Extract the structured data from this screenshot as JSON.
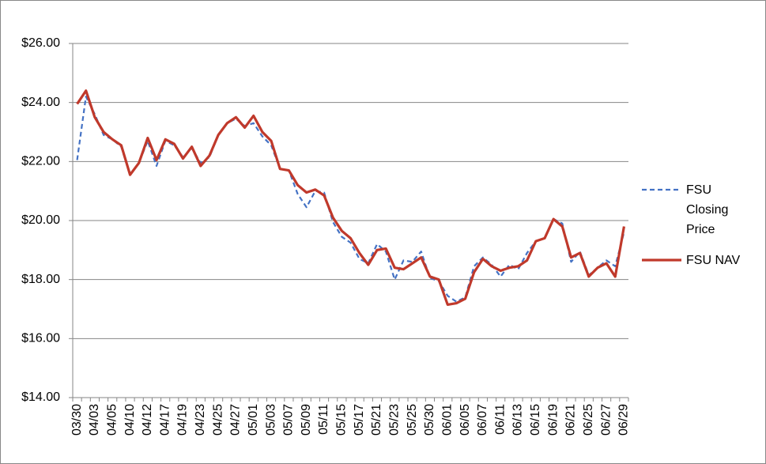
{
  "chart_data": {
    "type": "line",
    "categories": [
      "03/30",
      null,
      "04/03",
      null,
      "04/05",
      null,
      "04/10",
      null,
      "04/12",
      null,
      "04/17",
      null,
      "04/19",
      null,
      "04/23",
      null,
      "04/25",
      null,
      "04/27",
      null,
      "05/01",
      null,
      "05/03",
      null,
      "05/07",
      null,
      "05/09",
      null,
      "05/11",
      null,
      "05/15",
      null,
      "05/17",
      null,
      "05/21",
      null,
      "05/23",
      null,
      "05/25",
      null,
      "05/30",
      null,
      "06/01",
      null,
      "06/05",
      null,
      "06/07",
      null,
      "06/11",
      null,
      "06/13",
      null,
      "06/15",
      null,
      "06/19",
      null,
      "06/21",
      null,
      "06/25",
      null,
      "06/27",
      null,
      "06/29"
    ],
    "series": [
      {
        "name": "FSU Closing Price",
        "color": "#4472c4",
        "dash": true,
        "values": [
          22.05,
          24.2,
          23.6,
          22.9,
          22.75,
          22.5,
          21.55,
          21.95,
          22.7,
          21.85,
          22.7,
          22.55,
          22.15,
          22.45,
          21.95,
          22.15,
          22.9,
          23.3,
          23.45,
          23.2,
          23.3,
          22.85,
          22.55,
          21.75,
          21.7,
          20.9,
          20.45,
          21.0,
          20.95,
          19.95,
          19.45,
          19.25,
          18.7,
          18.55,
          19.2,
          18.95,
          18.0,
          18.65,
          18.6,
          18.95,
          18.05,
          17.95,
          17.45,
          17.25,
          17.4,
          18.45,
          18.75,
          18.5,
          18.1,
          18.5,
          18.35,
          18.9,
          19.3,
          19.4,
          20.05,
          19.9,
          18.6,
          18.95,
          18.15,
          18.4,
          18.65,
          18.45,
          19.6
        ]
      },
      {
        "name": "FSU NAV",
        "color": "#c0392b",
        "dash": false,
        "values": [
          23.95,
          24.4,
          23.5,
          23.0,
          22.75,
          22.55,
          21.55,
          21.95,
          22.8,
          22.05,
          22.75,
          22.6,
          22.1,
          22.5,
          21.85,
          22.2,
          22.9,
          23.3,
          23.5,
          23.15,
          23.55,
          23.0,
          22.7,
          21.75,
          21.7,
          21.2,
          20.95,
          21.05,
          20.85,
          20.1,
          19.65,
          19.4,
          18.9,
          18.5,
          19.0,
          19.05,
          18.4,
          18.35,
          18.55,
          18.75,
          18.1,
          18.0,
          17.15,
          17.2,
          17.35,
          18.25,
          18.7,
          18.45,
          18.3,
          18.4,
          18.45,
          18.65,
          19.3,
          19.4,
          20.05,
          19.8,
          18.75,
          18.9,
          18.1,
          18.4,
          18.55,
          18.1,
          19.8
        ]
      }
    ],
    "ylim": [
      14,
      26
    ],
    "yticks": [
      {
        "value": 14,
        "label": "$14.00"
      },
      {
        "value": 16,
        "label": "$16.00"
      },
      {
        "value": 18,
        "label": "$18.00"
      },
      {
        "value": 20,
        "label": "$20.00"
      },
      {
        "value": 22,
        "label": "$22.00"
      },
      {
        "value": 24,
        "label": "$24.00"
      },
      {
        "value": 26,
        "label": "$26.00"
      }
    ],
    "grid": true,
    "legend": "right"
  }
}
